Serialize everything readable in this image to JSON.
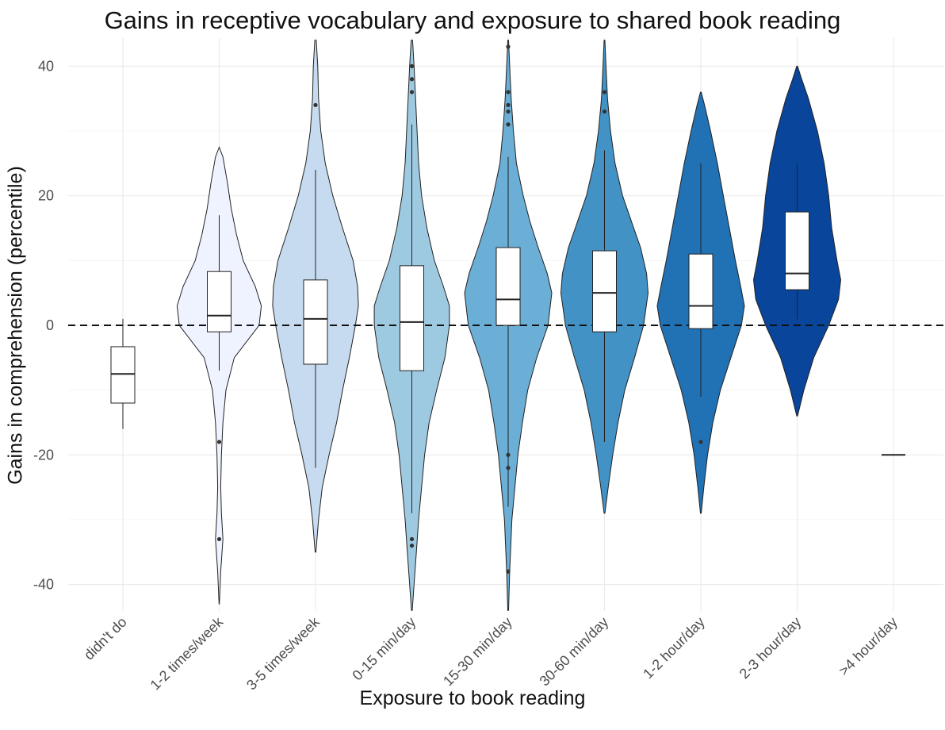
{
  "chart_data": {
    "type": "violin",
    "title": "Gains in receptive vocabulary and exposure to shared book reading",
    "xlabel": "Exposure to book reading",
    "ylabel": "Gains in comprehension (percentile)",
    "ylim": [
      -44,
      44
    ],
    "yticks": [
      -40,
      -20,
      0,
      20,
      40
    ],
    "reference_line": {
      "y": 0,
      "style": "dashed"
    },
    "grid": true,
    "categories": [
      "didn't do",
      "1-2 times/week",
      "3-5 times/week",
      "0-15 min/day",
      "15-30 min/day",
      "30-60 min/day",
      "1-2 hour/day",
      "2-3 hour/day",
      ">4 hour/day"
    ],
    "groups": [
      {
        "category": "didn't do",
        "fill": "#ffffff",
        "violin": null,
        "box": {
          "min": -16,
          "q1": -12,
          "median": -7.5,
          "q3": -3.3,
          "max": 1
        },
        "outliers": []
      },
      {
        "category": "1-2 times/week",
        "fill": "#eff3ff",
        "violin": {
          "min": -43,
          "max": 27.5,
          "density": [
            [
              -43,
              0.2
            ],
            [
              -38,
              2
            ],
            [
              -33,
              5
            ],
            [
              -29,
              3
            ],
            [
              -25,
              2
            ],
            [
              -20,
              3
            ],
            [
              -15,
              5
            ],
            [
              -10,
              9
            ],
            [
              -5,
              20
            ],
            [
              0,
              53
            ],
            [
              3,
              56
            ],
            [
              6,
              48
            ],
            [
              10,
              32
            ],
            [
              14,
              23
            ],
            [
              18,
              16
            ],
            [
              22,
              11
            ],
            [
              26,
              5
            ],
            [
              27.5,
              0
            ]
          ]
        },
        "box": {
          "min": -7,
          "q1": -1,
          "median": 1.5,
          "q3": 8.3,
          "max": 17
        },
        "outliers": [
          -18,
          -33
        ]
      },
      {
        "category": "3-5 times/week",
        "fill": "#c6dbef",
        "violin": {
          "min": -35,
          "max": 44,
          "density": [
            [
              -35,
              0.5
            ],
            [
              -30,
              4
            ],
            [
              -25,
              9
            ],
            [
              -20,
              18
            ],
            [
              -15,
              28
            ],
            [
              -10,
              36
            ],
            [
              -5,
              45
            ],
            [
              0,
              53
            ],
            [
              3,
              57
            ],
            [
              6,
              56
            ],
            [
              10,
              50
            ],
            [
              15,
              36
            ],
            [
              20,
              23
            ],
            [
              25,
              13
            ],
            [
              30,
              7
            ],
            [
              35,
              4
            ],
            [
              40,
              3
            ],
            [
              44,
              1
            ]
          ]
        },
        "box": {
          "min": -22,
          "q1": -6,
          "median": 1,
          "q3": 7,
          "max": 24
        },
        "outliers": [
          34
        ]
      },
      {
        "category": "0-15 min/day",
        "fill": "#9ecae1",
        "violin": {
          "min": -44,
          "max": 44,
          "density": [
            [
              -44,
              0.5
            ],
            [
              -40,
              3
            ],
            [
              -35,
              6
            ],
            [
              -30,
              9
            ],
            [
              -25,
              13
            ],
            [
              -20,
              17
            ],
            [
              -15,
              23
            ],
            [
              -10,
              33
            ],
            [
              -5,
              44
            ],
            [
              0,
              50
            ],
            [
              3,
              50
            ],
            [
              6,
              42
            ],
            [
              10,
              30
            ],
            [
              15,
              20
            ],
            [
              20,
              13
            ],
            [
              25,
              9
            ],
            [
              30,
              7
            ],
            [
              35,
              5
            ],
            [
              40,
              3
            ],
            [
              44,
              1
            ]
          ]
        },
        "box": {
          "min": -29,
          "q1": -7,
          "median": 0.5,
          "q3": 9.2,
          "max": 31
        },
        "outliers": [
          40,
          38,
          36,
          -33,
          -34
        ]
      },
      {
        "category": "15-30 min/day",
        "fill": "#6baed6",
        "violin": {
          "min": -44,
          "max": 44,
          "density": [
            [
              -44,
              0.5
            ],
            [
              -38,
              2
            ],
            [
              -30,
              5
            ],
            [
              -25,
              9
            ],
            [
              -20,
              13
            ],
            [
              -15,
              19
            ],
            [
              -10,
              26
            ],
            [
              -5,
              38
            ],
            [
              0,
              53
            ],
            [
              5,
              58
            ],
            [
              8,
              52
            ],
            [
              12,
              40
            ],
            [
              16,
              29
            ],
            [
              20,
              20
            ],
            [
              25,
              11
            ],
            [
              30,
              7
            ],
            [
              35,
              4
            ],
            [
              40,
              2
            ],
            [
              44,
              0.5
            ]
          ]
        },
        "box": {
          "min": -28,
          "q1": 0,
          "median": 4,
          "q3": 12,
          "max": 26
        },
        "outliers": [
          43,
          36,
          34,
          33,
          31,
          -20,
          -22,
          -38
        ]
      },
      {
        "category": "30-60 min/day",
        "fill": "#4292c6",
        "violin": {
          "min": -29,
          "max": 44,
          "density": [
            [
              -29,
              0.5
            ],
            [
              -25,
              5
            ],
            [
              -20,
              11
            ],
            [
              -15,
              18
            ],
            [
              -10,
              27
            ],
            [
              -5,
              40
            ],
            [
              0,
              52
            ],
            [
              5,
              58
            ],
            [
              8,
              56
            ],
            [
              12,
              48
            ],
            [
              16,
              36
            ],
            [
              20,
              24
            ],
            [
              25,
              14
            ],
            [
              30,
              8
            ],
            [
              35,
              4
            ],
            [
              40,
              2
            ],
            [
              44,
              0.5
            ]
          ]
        },
        "box": {
          "min": -18,
          "q1": -1,
          "median": 5,
          "q3": 11.5,
          "max": 27
        },
        "outliers": [
          36,
          33
        ]
      },
      {
        "category": "1-2 hour/day",
        "fill": "#2171b5",
        "violin": {
          "min": -29,
          "max": 36,
          "density": [
            [
              -29,
              0.5
            ],
            [
              -25,
              4
            ],
            [
              -20,
              9
            ],
            [
              -15,
              16
            ],
            [
              -10,
              26
            ],
            [
              -5,
              40
            ],
            [
              0,
              54
            ],
            [
              3,
              58
            ],
            [
              6,
              53
            ],
            [
              10,
              46
            ],
            [
              15,
              38
            ],
            [
              20,
              30
            ],
            [
              25,
              22
            ],
            [
              30,
              13
            ],
            [
              34,
              5
            ],
            [
              36,
              0.5
            ]
          ]
        },
        "box": {
          "min": -11,
          "q1": -0.5,
          "median": 3,
          "q3": 11,
          "max": 25
        },
        "outliers": [
          -18
        ]
      },
      {
        "category": "2-3 hour/day",
        "fill": "#08459b",
        "violin": {
          "min": -14,
          "max": 40,
          "density": [
            [
              -14,
              0.5
            ],
            [
              -10,
              9
            ],
            [
              -5,
              22
            ],
            [
              0,
              42
            ],
            [
              4,
              55
            ],
            [
              7,
              58
            ],
            [
              10,
              53
            ],
            [
              15,
              46
            ],
            [
              20,
              42
            ],
            [
              25,
              36
            ],
            [
              30,
              27
            ],
            [
              35,
              15
            ],
            [
              38,
              6
            ],
            [
              40,
              0.5
            ]
          ]
        },
        "box": {
          "min": 1,
          "q1": 5.5,
          "median": 8,
          "q3": 17.5,
          "max": 25
        },
        "outliers": []
      },
      {
        "category": ">4 hour/day",
        "fill": "#08306b",
        "violin": null,
        "box": {
          "min": -20,
          "q1": -20,
          "median": -20,
          "q3": -20,
          "max": -20
        },
        "outliers": []
      }
    ]
  }
}
